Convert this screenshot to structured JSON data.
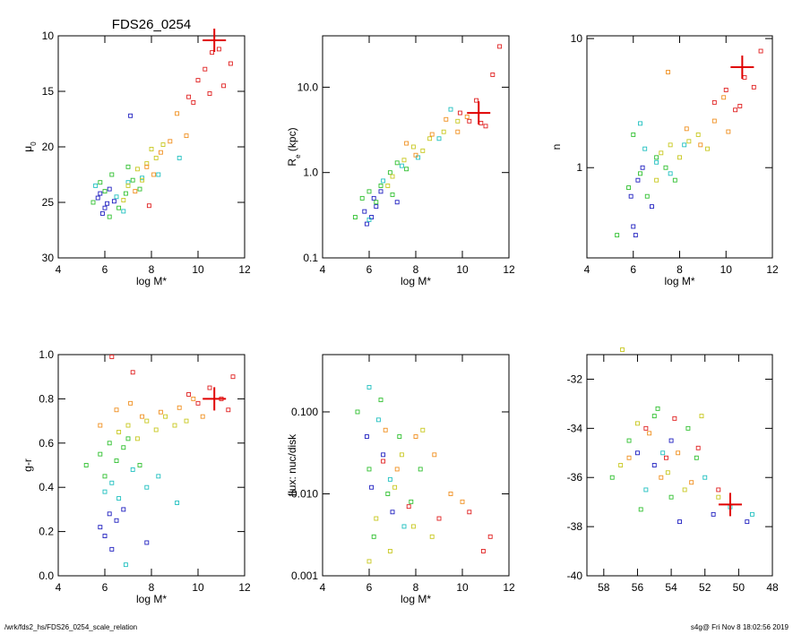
{
  "footer_left": "/wrk/fds2_hs/FDS26_0254_scale_relation",
  "footer_right": "s4g@  Fri Nov  8 18:02:56 2019",
  "chart_data": [
    {
      "type": "scatter",
      "title": "FDS26_0254",
      "xlabel": "log M*",
      "ylabel": [
        "μ",
        "0"
      ],
      "xlim": [
        4,
        12
      ],
      "xticks": [
        4,
        6,
        8,
        10,
        12
      ],
      "ylim": [
        30,
        10
      ],
      "yticks": [
        10,
        15,
        20,
        25,
        30
      ],
      "log_y": false,
      "series": [
        {
          "color": "#2020c0",
          "x": [
            5.8,
            6.0,
            6.2,
            5.9,
            6.4,
            7.1,
            6.1,
            5.7
          ],
          "values": [
            24.2,
            25.5,
            23.8,
            26.0,
            24.9,
            17.2,
            25.1,
            24.6
          ]
        },
        {
          "color": "#20c0c0",
          "x": [
            6.5,
            7.0,
            7.6,
            8.3,
            9.2,
            6.8,
            5.6
          ],
          "values": [
            24.5,
            23.2,
            22.8,
            22.5,
            21.0,
            25.8,
            23.5
          ]
        },
        {
          "color": "#30c030",
          "x": [
            5.5,
            6.0,
            6.3,
            6.6,
            6.9,
            7.2,
            7.5,
            6.2,
            5.8,
            7.0
          ],
          "values": [
            25.0,
            24.0,
            22.5,
            25.5,
            24.2,
            23.0,
            23.8,
            26.3,
            23.2,
            21.8
          ]
        },
        {
          "color": "#c8c820",
          "x": [
            7.0,
            7.4,
            7.8,
            8.2,
            8.5,
            7.6,
            8.0,
            6.8
          ],
          "values": [
            23.5,
            22.0,
            21.5,
            21.0,
            19.8,
            23.0,
            20.2,
            24.8
          ]
        },
        {
          "color": "#f09020",
          "x": [
            7.8,
            8.4,
            8.8,
            9.1,
            9.5,
            8.1,
            7.3
          ],
          "values": [
            21.8,
            20.5,
            19.5,
            17.0,
            19.0,
            22.5,
            24.0
          ]
        },
        {
          "color": "#e02020",
          "x": [
            9.6,
            10.0,
            10.3,
            10.6,
            10.9,
            11.1,
            11.4,
            9.8,
            10.5,
            7.9
          ],
          "values": [
            15.5,
            14.0,
            13.0,
            11.5,
            11.2,
            14.5,
            12.5,
            16.0,
            15.2,
            25.3
          ]
        }
      ],
      "highlight": {
        "x": 10.7,
        "y": 10.4,
        "color": "#e00000"
      }
    },
    {
      "type": "scatter",
      "xlabel": "log M*",
      "ylabel": [
        "R",
        "e",
        " (kpc)"
      ],
      "xlim": [
        4,
        12
      ],
      "xticks": [
        4,
        6,
        8,
        10,
        12
      ],
      "ylim": [
        0.1,
        40
      ],
      "yticks": [
        0.1,
        {
          "value": 1,
          "label": "1.0"
        },
        {
          "value": 10,
          "label": "10.0"
        }
      ],
      "log_y": true,
      "series": [
        {
          "color": "#2020c0",
          "x": [
            5.9,
            6.1,
            6.3,
            5.8,
            6.2,
            6.5,
            7.2
          ],
          "values": [
            0.25,
            0.3,
            0.4,
            0.35,
            0.5,
            0.6,
            0.45
          ]
        },
        {
          "color": "#20c0c0",
          "x": [
            6.6,
            7.4,
            8.1,
            9.0,
            6.0,
            9.5
          ],
          "values": [
            0.8,
            1.2,
            1.5,
            2.5,
            0.28,
            5.5
          ]
        },
        {
          "color": "#30c030",
          "x": [
            5.4,
            6.0,
            6.5,
            6.9,
            7.2,
            7.6,
            6.3,
            5.7,
            7.0
          ],
          "values": [
            0.3,
            0.6,
            0.7,
            1.0,
            1.3,
            1.1,
            0.45,
            0.5,
            0.55
          ]
        },
        {
          "color": "#c8c820",
          "x": [
            7.0,
            7.5,
            7.9,
            8.3,
            8.6,
            9.2,
            6.8,
            9.8
          ],
          "values": [
            0.9,
            1.4,
            2.0,
            1.8,
            2.5,
            3.0,
            0.7,
            4.0
          ]
        },
        {
          "color": "#f09020",
          "x": [
            8.0,
            8.7,
            9.3,
            9.8,
            10.2,
            7.6
          ],
          "values": [
            1.6,
            2.8,
            4.2,
            3.0,
            4.5,
            2.2
          ]
        },
        {
          "color": "#e02020",
          "x": [
            9.9,
            10.3,
            10.6,
            11.0,
            11.3,
            11.6,
            10.8
          ],
          "values": [
            5.0,
            4.0,
            7.0,
            3.5,
            14,
            30,
            3.8
          ]
        }
      ],
      "highlight": {
        "x": 10.7,
        "y": 5.0,
        "color": "#e00000"
      }
    },
    {
      "type": "scatter",
      "xlabel": "log M*",
      "ylabel": [
        "n"
      ],
      "xlim": [
        4,
        12
      ],
      "xticks": [
        4,
        6,
        8,
        10,
        12
      ],
      "ylim": [
        0.2,
        10.5
      ],
      "yticks": [
        1,
        10
      ],
      "log_y": true,
      "series": [
        {
          "color": "#2020c0",
          "x": [
            5.9,
            6.2,
            6.0,
            6.4,
            6.8,
            6.1
          ],
          "values": [
            0.6,
            0.8,
            0.35,
            1.0,
            0.5,
            0.3
          ]
        },
        {
          "color": "#20c0c0",
          "x": [
            6.5,
            7.0,
            7.6,
            6.3,
            8.2
          ],
          "values": [
            1.4,
            1.1,
            0.9,
            2.2,
            1.5
          ]
        },
        {
          "color": "#30c030",
          "x": [
            5.3,
            5.8,
            6.3,
            6.6,
            7.0,
            7.4,
            6.0,
            7.8
          ],
          "values": [
            0.3,
            0.7,
            0.9,
            0.6,
            1.2,
            1.0,
            1.8,
            0.8
          ]
        },
        {
          "color": "#c8c820",
          "x": [
            7.2,
            7.6,
            8.0,
            8.4,
            8.8,
            7.0,
            9.2
          ],
          "values": [
            1.3,
            1.5,
            1.2,
            1.6,
            1.8,
            0.8,
            1.4
          ]
        },
        {
          "color": "#f09020",
          "x": [
            8.3,
            8.9,
            9.5,
            9.9,
            10.1,
            7.5
          ],
          "values": [
            2.0,
            1.5,
            2.3,
            3.5,
            1.9,
            5.5
          ]
        },
        {
          "color": "#e02020",
          "x": [
            10.0,
            10.4,
            10.8,
            11.2,
            11.5,
            10.6,
            9.5
          ],
          "values": [
            4.0,
            2.8,
            5.0,
            4.2,
            8.0,
            3.0,
            3.2
          ]
        }
      ],
      "highlight": {
        "x": 10.7,
        "y": 6.0,
        "color": "#e00000"
      }
    },
    {
      "type": "scatter",
      "xlabel": "log M*",
      "ylabel": [
        "g-r"
      ],
      "xlim": [
        4,
        12
      ],
      "xticks": [
        4,
        6,
        8,
        10,
        12
      ],
      "ylim": [
        0,
        1
      ],
      "yticks": [
        {
          "value": 0,
          "label": "0.0"
        },
        0.2,
        0.4,
        0.6,
        0.8,
        {
          "value": 1,
          "label": "1.0"
        }
      ],
      "log_y": false,
      "series": [
        {
          "color": "#2020c0",
          "x": [
            5.8,
            6.0,
            6.2,
            6.5,
            6.3,
            7.8,
            6.8
          ],
          "values": [
            0.22,
            0.18,
            0.28,
            0.25,
            0.12,
            0.15,
            0.3
          ]
        },
        {
          "color": "#20c0c0",
          "x": [
            6.0,
            6.3,
            6.6,
            7.2,
            7.8,
            8.3,
            9.1,
            6.9
          ],
          "values": [
            0.38,
            0.42,
            0.35,
            0.48,
            0.4,
            0.45,
            0.33,
            0.05
          ]
        },
        {
          "color": "#30c030",
          "x": [
            5.2,
            5.8,
            6.2,
            6.5,
            6.8,
            7.0,
            7.5,
            6.0
          ],
          "values": [
            0.5,
            0.55,
            0.6,
            0.52,
            0.58,
            0.62,
            0.5,
            0.45
          ]
        },
        {
          "color": "#c8c820",
          "x": [
            6.6,
            7.0,
            7.4,
            7.8,
            8.2,
            8.6,
            9.0,
            9.5
          ],
          "values": [
            0.65,
            0.68,
            0.62,
            0.7,
            0.66,
            0.72,
            0.68,
            0.7
          ]
        },
        {
          "color": "#f09020",
          "x": [
            5.8,
            6.5,
            7.1,
            7.6,
            8.4,
            9.2,
            9.8,
            10.2
          ],
          "values": [
            0.68,
            0.75,
            0.78,
            0.72,
            0.74,
            0.76,
            0.8,
            0.72
          ]
        },
        {
          "color": "#e02020",
          "x": [
            9.6,
            10.0,
            10.5,
            11.0,
            11.5,
            11.3,
            6.3,
            7.2
          ],
          "values": [
            0.82,
            0.78,
            0.85,
            0.8,
            0.9,
            0.75,
            0.99,
            0.92
          ]
        }
      ],
      "highlight": {
        "x": 10.7,
        "y": 0.8,
        "color": "#e00000"
      }
    },
    {
      "type": "scatter",
      "xlabel": "log M*",
      "ylabel": [
        "flux: nuc/disk"
      ],
      "xlim": [
        4,
        12
      ],
      "xticks": [
        4,
        6,
        8,
        10,
        12
      ],
      "ylim": [
        0.001,
        0.5
      ],
      "yticks": [
        0.001,
        {
          "value": 0.01,
          "label": "0.010"
        },
        {
          "value": 0.1,
          "label": "0.100"
        }
      ],
      "log_y": true,
      "series": [
        {
          "color": "#2020c0",
          "x": [
            6.1,
            6.6,
            7.0,
            5.9
          ],
          "values": [
            0.012,
            0.03,
            0.006,
            0.05
          ]
        },
        {
          "color": "#20c0c0",
          "x": [
            6.0,
            6.4,
            6.9,
            7.5
          ],
          "values": [
            0.2,
            0.08,
            0.015,
            0.004
          ]
        },
        {
          "color": "#30c030",
          "x": [
            5.5,
            6.0,
            6.5,
            6.8,
            7.3,
            7.8,
            8.2,
            6.2
          ],
          "values": [
            0.1,
            0.02,
            0.14,
            0.01,
            0.05,
            0.008,
            0.02,
            0.003
          ]
        },
        {
          "color": "#c8c820",
          "x": [
            6.3,
            6.9,
            7.4,
            7.9,
            8.3,
            8.7,
            6.0,
            7.1
          ],
          "values": [
            0.005,
            0.002,
            0.03,
            0.004,
            0.06,
            0.003,
            0.0015,
            0.012
          ]
        },
        {
          "color": "#f09020",
          "x": [
            6.7,
            7.2,
            8.0,
            8.8,
            9.5,
            10.0
          ],
          "values": [
            0.06,
            0.02,
            0.05,
            0.03,
            0.01,
            0.008
          ]
        },
        {
          "color": "#e02020",
          "x": [
            6.6,
            7.7,
            9.0,
            10.3,
            11.2,
            10.9
          ],
          "values": [
            0.025,
            0.007,
            0.005,
            0.006,
            0.003,
            0.002
          ]
        }
      ]
    },
    {
      "type": "scatter",
      "xlim": [
        59,
        48
      ],
      "xticks": [
        58,
        56,
        54,
        52,
        50,
        48
      ],
      "ylim": [
        -40,
        -31
      ],
      "yticks": [
        -32,
        -34,
        -36,
        -38,
        -40
      ],
      "log_y": false,
      "series": [
        {
          "color": "#2020c0",
          "x": [
            56,
            55,
            54,
            53.5,
            51.5,
            49.5
          ],
          "values": [
            -35,
            -35.5,
            -34.5,
            -37.8,
            -37.5,
            -37.8
          ]
        },
        {
          "color": "#20c0c0",
          "x": [
            55.5,
            54.5,
            52,
            50.5,
            49.2
          ],
          "values": [
            -36.5,
            -35,
            -36,
            -37.2,
            -37.5
          ]
        },
        {
          "color": "#30c030",
          "x": [
            57.5,
            56.5,
            55,
            54,
            53,
            52.5,
            55.8,
            54.8
          ],
          "values": [
            -36,
            -34.5,
            -33.5,
            -36.8,
            -34,
            -35.2,
            -37.3,
            -33.2
          ]
        },
        {
          "color": "#c8c820",
          "x": [
            57,
            56,
            54.2,
            53.2,
            52.2,
            51.2,
            56.9
          ],
          "values": [
            -35.5,
            -33.8,
            -35.8,
            -36.5,
            -33.5,
            -36.8,
            -30.8
          ]
        },
        {
          "color": "#f09020",
          "x": [
            56.5,
            55.3,
            54.6,
            53.6,
            52.8
          ],
          "values": [
            -35.2,
            -34.2,
            -36,
            -35,
            -36.2
          ]
        },
        {
          "color": "#e02020",
          "x": [
            55.5,
            54.3,
            53.8,
            52.4,
            51.2
          ],
          "values": [
            -34,
            -35.2,
            -33.6,
            -34.8,
            -36.5
          ]
        }
      ],
      "highlight": {
        "x": 50.5,
        "y": -37.1,
        "color": "#e00000"
      }
    }
  ]
}
